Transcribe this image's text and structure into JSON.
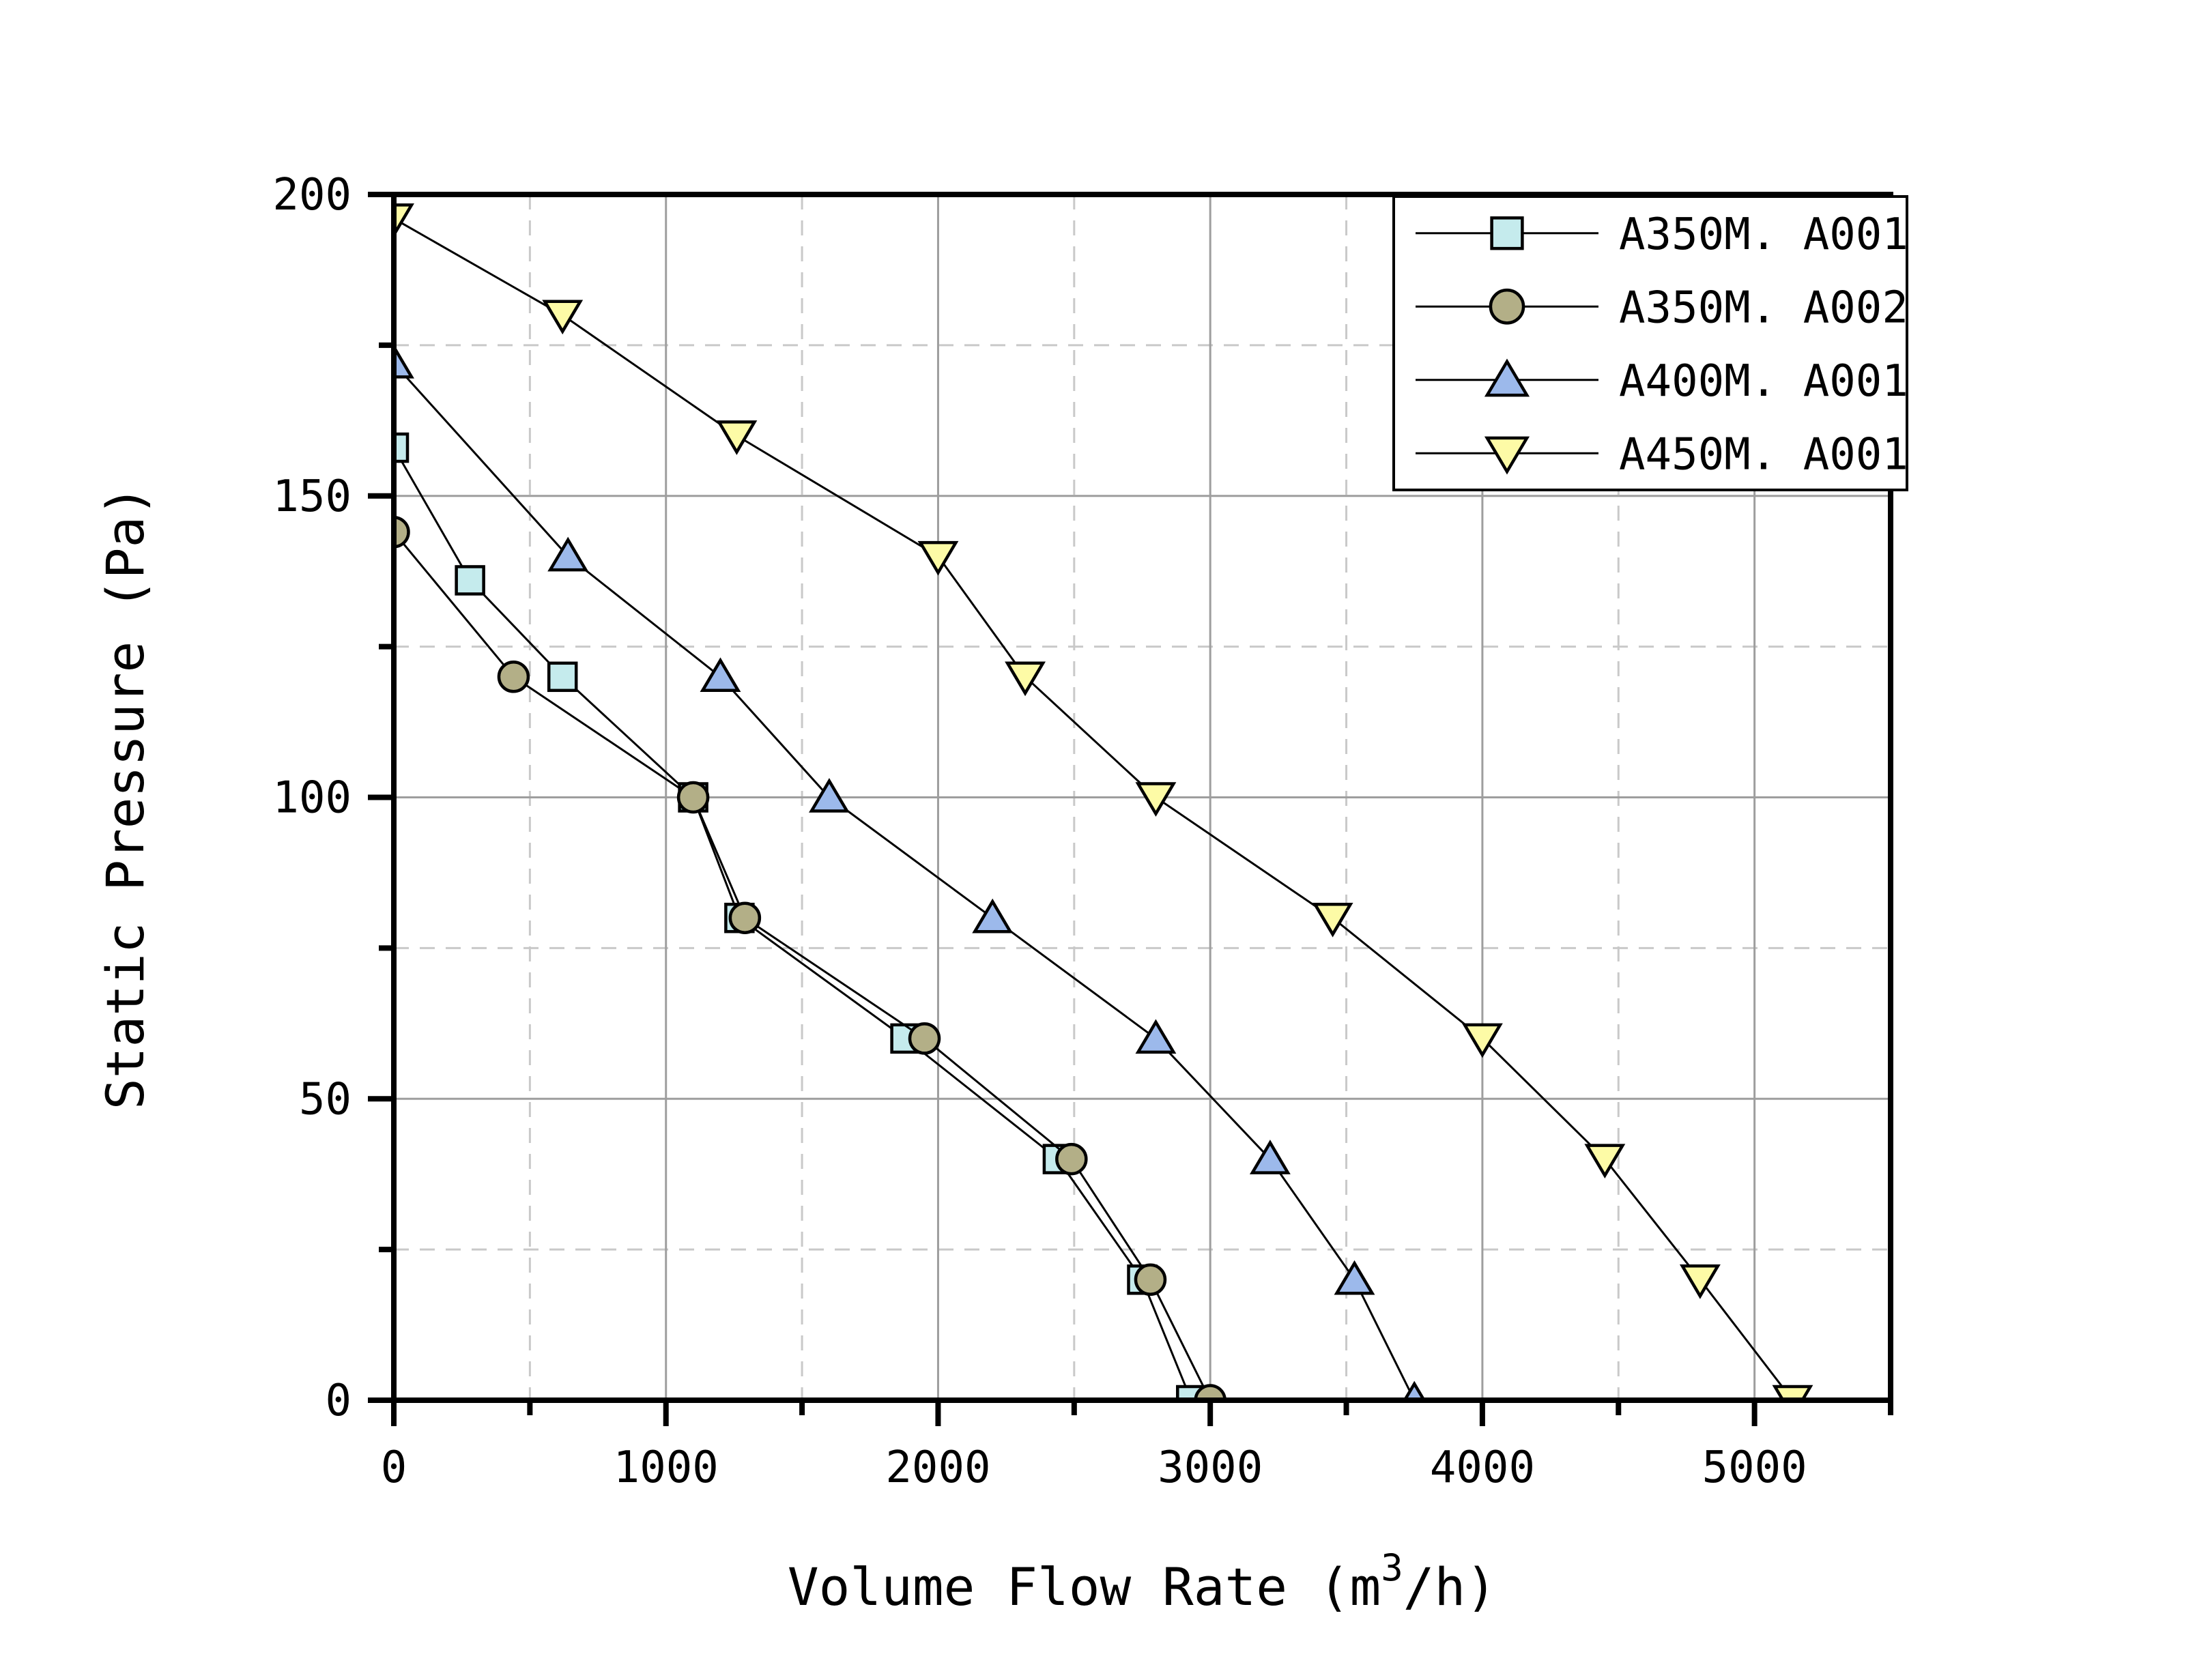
{
  "chart_data": {
    "type": "line",
    "title": "",
    "xlabel": "Volume Flow Rate (m³/h)",
    "xlabel_parts": {
      "pre": "Volume Flow Rate (m",
      "sup": "3",
      "post": "/h)"
    },
    "ylabel": "Static Pressure (Pa)",
    "xlim": [
      0,
      5500
    ],
    "ylim": [
      0,
      200
    ],
    "x_major_ticks": [
      0,
      1000,
      2000,
      3000,
      4000,
      5000
    ],
    "x_minor_ticks": [
      500,
      1500,
      2500,
      3500,
      4500,
      5500
    ],
    "y_major_ticks": [
      0,
      50,
      100,
      150,
      200
    ],
    "y_minor_ticks": [
      25,
      75,
      125,
      175
    ],
    "grid": {
      "major_color": "#9e9e9e",
      "minor_color": "#c9c9c9",
      "minor_dashed": true
    },
    "legend": {
      "position": "top-right",
      "bg": "#ffffff",
      "border_color": "#000000",
      "entries": [
        "A350M. A001",
        "A350M. A002",
        "A400M. A001",
        "A450M. A001"
      ]
    },
    "line_color": "#000000",
    "series": [
      {
        "name": "A350M. A001",
        "marker": "square",
        "marker_fill": "#c5ebed",
        "points": [
          [
            0,
            158
          ],
          [
            280,
            136
          ],
          [
            620,
            120
          ],
          [
            1100,
            100
          ],
          [
            1270,
            80
          ],
          [
            1880,
            60
          ],
          [
            2440,
            40
          ],
          [
            2750,
            20
          ],
          [
            2930,
            0
          ]
        ]
      },
      {
        "name": "A350M. A002",
        "marker": "circle",
        "marker_fill": "#b3af87",
        "points": [
          [
            0,
            144
          ],
          [
            440,
            120
          ],
          [
            1100,
            100
          ],
          [
            1290,
            80
          ],
          [
            1950,
            60
          ],
          [
            2490,
            40
          ],
          [
            2780,
            20
          ],
          [
            3000,
            0
          ]
        ]
      },
      {
        "name": "A400M. A001",
        "marker": "triangle-up",
        "marker_fill": "#9cb9eb",
        "points": [
          [
            0,
            172
          ],
          [
            640,
            140
          ],
          [
            1200,
            120
          ],
          [
            1600,
            100
          ],
          [
            2200,
            80
          ],
          [
            2800,
            60
          ],
          [
            3220,
            40
          ],
          [
            3530,
            20
          ],
          [
            3750,
            0
          ]
        ]
      },
      {
        "name": "A450M. A001",
        "marker": "triangle-down",
        "marker_fill": "#fdfba6",
        "points": [
          [
            0,
            196
          ],
          [
            620,
            180
          ],
          [
            1260,
            160
          ],
          [
            2000,
            140
          ],
          [
            2320,
            120
          ],
          [
            2800,
            100
          ],
          [
            3450,
            80
          ],
          [
            4000,
            60
          ],
          [
            4450,
            40
          ],
          [
            4800,
            20
          ],
          [
            5140,
            0
          ]
        ]
      }
    ]
  }
}
